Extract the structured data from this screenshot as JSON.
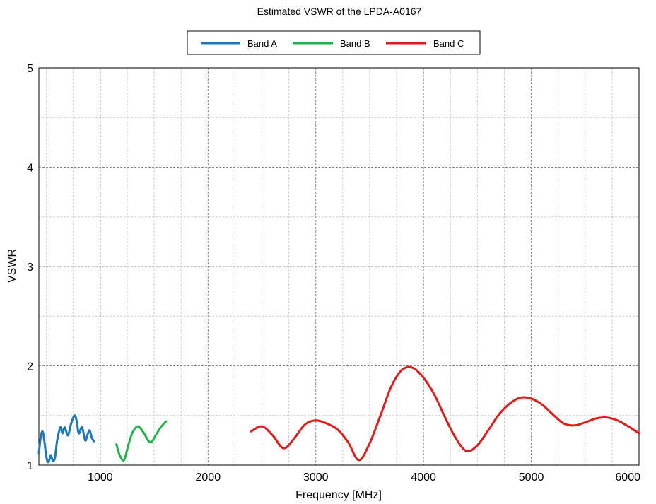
{
  "chart_data": {
    "type": "line",
    "title": "Estimated VSWR of the LPDA-A0167",
    "xlabel": "Frequency [MHz]",
    "ylabel": "VSWR",
    "xlim": [
      430,
      6000
    ],
    "ylim": [
      1,
      5
    ],
    "xticks": [
      1000,
      2000,
      3000,
      4000,
      5000,
      6000
    ],
    "yticks": [
      1,
      2,
      3,
      4,
      5
    ],
    "grid": true,
    "legend_position": "top",
    "series": [
      {
        "name": "Band A",
        "color": "#1f77b4",
        "x": [
          430,
          450,
          470,
          500,
          520,
          540,
          560,
          580,
          600,
          630,
          650,
          670,
          700,
          730,
          760,
          780,
          800,
          830,
          860,
          880,
          900,
          920,
          940
        ],
        "y": [
          1.12,
          1.3,
          1.32,
          1.08,
          1.03,
          1.1,
          1.04,
          1.08,
          1.25,
          1.38,
          1.32,
          1.38,
          1.3,
          1.42,
          1.5,
          1.45,
          1.32,
          1.38,
          1.25,
          1.3,
          1.35,
          1.28,
          1.24
        ]
      },
      {
        "name": "Band B",
        "color": "#22b14c",
        "x": [
          1150,
          1180,
          1220,
          1260,
          1300,
          1350,
          1400,
          1450,
          1480,
          1520,
          1560,
          1610
        ],
        "y": [
          1.21,
          1.1,
          1.05,
          1.2,
          1.33,
          1.39,
          1.33,
          1.24,
          1.24,
          1.31,
          1.38,
          1.44
        ]
      },
      {
        "name": "Band C",
        "color": "#e31a1c",
        "x": [
          2400,
          2500,
          2600,
          2700,
          2800,
          2900,
          3000,
          3100,
          3200,
          3300,
          3400,
          3500,
          3600,
          3700,
          3800,
          3900,
          4000,
          4100,
          4200,
          4300,
          4400,
          4500,
          4600,
          4700,
          4800,
          4900,
          5000,
          5100,
          5200,
          5300,
          5400,
          5500,
          5600,
          5700,
          5800,
          5900,
          6000
        ],
        "y": [
          1.34,
          1.39,
          1.3,
          1.17,
          1.27,
          1.41,
          1.45,
          1.42,
          1.36,
          1.23,
          1.05,
          1.22,
          1.5,
          1.79,
          1.96,
          1.98,
          1.88,
          1.71,
          1.48,
          1.27,
          1.14,
          1.2,
          1.35,
          1.51,
          1.62,
          1.68,
          1.67,
          1.61,
          1.51,
          1.42,
          1.4,
          1.43,
          1.47,
          1.48,
          1.45,
          1.39,
          1.32
        ]
      }
    ]
  }
}
